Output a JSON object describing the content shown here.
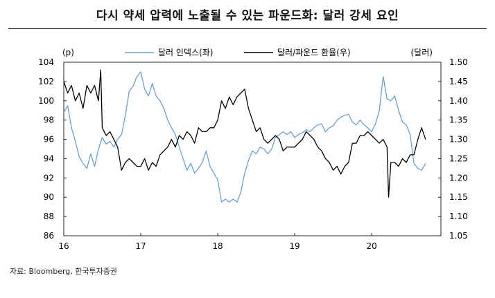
{
  "header": {
    "title": "다시 약세 압력에 노출될 수 있는 파운드화: 달러 강세 요인"
  },
  "footer": {
    "source": "자료: Bloomberg, 한국투자증권"
  },
  "chart_data": {
    "type": "line",
    "left_axis_unit": "(p)",
    "right_axis_unit": "(달러)",
    "x_ticks": [
      "16",
      "17",
      "18",
      "19",
      "20"
    ],
    "x_range": [
      2016.0,
      2020.9
    ],
    "left_ylim": [
      86,
      104
    ],
    "left_ticks": [
      "86",
      "88",
      "90",
      "92",
      "94",
      "96",
      "98",
      "100",
      "102",
      "104"
    ],
    "right_ylim": [
      1.05,
      1.5
    ],
    "right_ticks": [
      "1.05",
      "1.10",
      "1.15",
      "1.20",
      "1.25",
      "1.30",
      "1.35",
      "1.40",
      "1.45",
      "1.50"
    ],
    "grid": false,
    "legend_position": "top-center",
    "series": [
      {
        "name": "달러 인덱스(좌)",
        "axis": "left",
        "color": "#6a9fd4",
        "x": [
          2016.0,
          2016.05,
          2016.1,
          2016.15,
          2016.2,
          2016.25,
          2016.3,
          2016.35,
          2016.4,
          2016.45,
          2016.5,
          2016.55,
          2016.6,
          2016.65,
          2016.7,
          2016.75,
          2016.8,
          2016.85,
          2016.9,
          2016.95,
          2017.0,
          2017.05,
          2017.1,
          2017.15,
          2017.2,
          2017.25,
          2017.3,
          2017.35,
          2017.4,
          2017.45,
          2017.5,
          2017.55,
          2017.6,
          2017.65,
          2017.7,
          2017.75,
          2017.8,
          2017.85,
          2017.9,
          2017.95,
          2018.0,
          2018.05,
          2018.1,
          2018.15,
          2018.2,
          2018.25,
          2018.3,
          2018.35,
          2018.4,
          2018.45,
          2018.5,
          2018.55,
          2018.6,
          2018.65,
          2018.7,
          2018.75,
          2018.8,
          2018.85,
          2018.9,
          2018.95,
          2019.0,
          2019.05,
          2019.1,
          2019.15,
          2019.2,
          2019.25,
          2019.3,
          2019.35,
          2019.4,
          2019.45,
          2019.5,
          2019.55,
          2019.6,
          2019.65,
          2019.7,
          2019.75,
          2019.8,
          2019.85,
          2019.9,
          2019.95,
          2020.0,
          2020.05,
          2020.1,
          2020.15,
          2020.2,
          2020.25,
          2020.3,
          2020.35,
          2020.4,
          2020.45,
          2020.5,
          2020.55,
          2020.6,
          2020.65,
          2020.7
        ],
        "values": [
          98.8,
          99.5,
          97.2,
          95.8,
          94.2,
          93.5,
          93.0,
          94.5,
          93.2,
          95.0,
          96.2,
          95.5,
          95.8,
          95.2,
          96.0,
          96.5,
          98.5,
          101.0,
          101.5,
          102.5,
          103.0,
          101.2,
          100.5,
          101.8,
          100.5,
          100.0,
          99.2,
          98.0,
          97.2,
          96.5,
          95.2,
          94.0,
          92.8,
          93.5,
          92.5,
          93.0,
          93.6,
          94.8,
          93.2,
          92.5,
          91.8,
          89.5,
          89.8,
          89.5,
          89.8,
          89.5,
          90.5,
          92.5,
          93.8,
          94.8,
          94.5,
          95.2,
          95.0,
          94.5,
          95.0,
          96.2,
          96.5,
          96.8,
          96.5,
          96.8,
          96.2,
          96.5,
          96.7,
          97.0,
          96.8,
          97.2,
          97.5,
          97.6,
          96.8,
          97.2,
          97.4,
          98.0,
          98.3,
          98.5,
          98.6,
          97.8,
          97.5,
          98.0,
          97.5,
          97.2,
          96.8,
          97.6,
          99.0,
          102.5,
          100.2,
          100.0,
          100.5,
          99.0,
          97.8,
          97.5,
          96.5,
          93.5,
          93.0,
          92.8,
          93.5
        ]
      },
      {
        "name": "달러/파운드 환율(우)",
        "axis": "right",
        "color": "#000000",
        "x": [
          2016.0,
          2016.05,
          2016.1,
          2016.15,
          2016.2,
          2016.25,
          2016.3,
          2016.35,
          2016.4,
          2016.45,
          2016.48,
          2016.5,
          2016.55,
          2016.6,
          2016.65,
          2016.7,
          2016.75,
          2016.8,
          2016.85,
          2016.9,
          2016.95,
          2017.0,
          2017.05,
          2017.1,
          2017.15,
          2017.2,
          2017.25,
          2017.3,
          2017.35,
          2017.4,
          2017.45,
          2017.5,
          2017.55,
          2017.6,
          2017.65,
          2017.7,
          2017.75,
          2017.8,
          2017.85,
          2017.9,
          2017.95,
          2018.0,
          2018.05,
          2018.1,
          2018.15,
          2018.2,
          2018.25,
          2018.3,
          2018.35,
          2018.4,
          2018.45,
          2018.5,
          2018.55,
          2018.6,
          2018.65,
          2018.7,
          2018.75,
          2018.8,
          2018.85,
          2018.9,
          2018.95,
          2019.0,
          2019.05,
          2019.1,
          2019.15,
          2019.2,
          2019.25,
          2019.3,
          2019.35,
          2019.4,
          2019.45,
          2019.5,
          2019.55,
          2019.6,
          2019.65,
          2019.7,
          2019.75,
          2019.8,
          2019.85,
          2019.9,
          2019.95,
          2020.0,
          2020.05,
          2020.1,
          2020.15,
          2020.2,
          2020.22,
          2020.25,
          2020.3,
          2020.35,
          2020.4,
          2020.45,
          2020.5,
          2020.55,
          2020.6,
          2020.65,
          2020.7
        ],
        "values": [
          1.45,
          1.42,
          1.44,
          1.4,
          1.42,
          1.38,
          1.44,
          1.42,
          1.44,
          1.4,
          1.48,
          1.33,
          1.31,
          1.32,
          1.3,
          1.28,
          1.22,
          1.24,
          1.25,
          1.24,
          1.23,
          1.23,
          1.25,
          1.22,
          1.24,
          1.23,
          1.26,
          1.27,
          1.28,
          1.3,
          1.28,
          1.31,
          1.3,
          1.32,
          1.31,
          1.29,
          1.33,
          1.32,
          1.32,
          1.33,
          1.33,
          1.35,
          1.4,
          1.38,
          1.41,
          1.39,
          1.41,
          1.42,
          1.43,
          1.38,
          1.35,
          1.32,
          1.33,
          1.3,
          1.29,
          1.3,
          1.31,
          1.3,
          1.27,
          1.28,
          1.28,
          1.28,
          1.29,
          1.3,
          1.32,
          1.31,
          1.3,
          1.28,
          1.27,
          1.25,
          1.24,
          1.22,
          1.23,
          1.21,
          1.23,
          1.24,
          1.29,
          1.29,
          1.31,
          1.31,
          1.32,
          1.31,
          1.3,
          1.29,
          1.3,
          1.28,
          1.15,
          1.24,
          1.24,
          1.23,
          1.25,
          1.24,
          1.26,
          1.26,
          1.3,
          1.33,
          1.3
        ]
      }
    ]
  }
}
